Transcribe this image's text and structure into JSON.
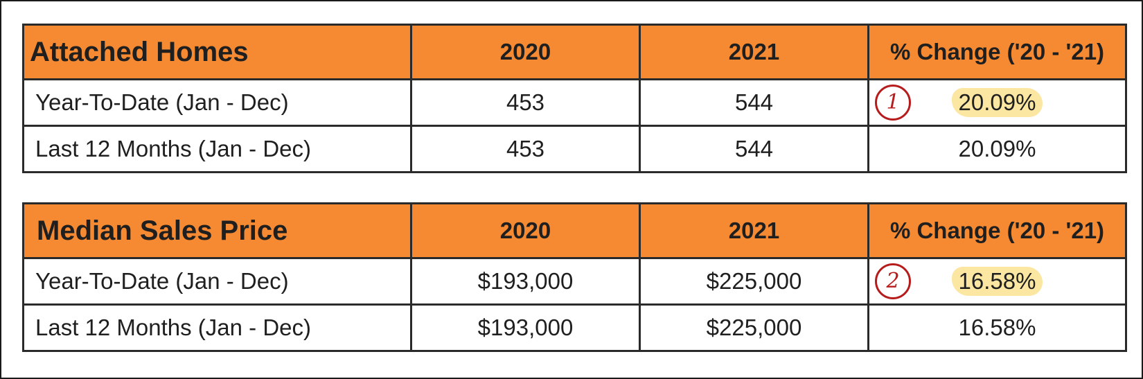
{
  "tables": [
    {
      "title": "Attached Homes",
      "headers": [
        "2020",
        "2021",
        "% Change ('20 - '21)"
      ],
      "rows": [
        {
          "label": "Year-To-Date (Jan - Dec)",
          "v2020": "453",
          "v2021": "544",
          "change": "20.09%",
          "annotation": "1",
          "highlighted": true
        },
        {
          "label": "Last 12 Months (Jan - Dec)",
          "v2020": "453",
          "v2021": "544",
          "change": "20.09%"
        }
      ]
    },
    {
      "title": "Median Sales Price",
      "headers": [
        "2020",
        "2021",
        "% Change ('20 - '21)"
      ],
      "rows": [
        {
          "label": "Year-To-Date (Jan - Dec)",
          "v2020": "$193,000",
          "v2021": "$225,000",
          "change": "16.58%",
          "annotation": "2",
          "highlighted": true
        },
        {
          "label": "Last 12 Months (Jan - Dec)",
          "v2020": "$193,000",
          "v2021": "$225,000",
          "change": "16.58%"
        }
      ]
    }
  ],
  "colors": {
    "header_bg": "#f58a33",
    "highlight": "#fbe6a2",
    "annotation": "#b71c1c"
  }
}
